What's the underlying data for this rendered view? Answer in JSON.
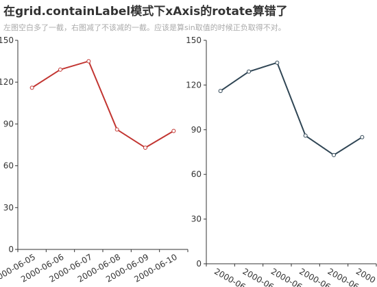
{
  "header": {
    "title": "在grid.containLabel模式下xAxis的rotate算错了",
    "subtitle": "左图空白多了一截，右图减了不该减的一截。应该是算sin取值的时候正负取得不对。"
  },
  "colors": {
    "axis": "#333333",
    "background": "#ffffff"
  },
  "chart_data": [
    {
      "type": "line",
      "x": [
        "2000-06-05",
        "2000-06-06",
        "2000-06-07",
        "2000-06-08",
        "2000-06-09",
        "2000-06-10"
      ],
      "x_tick_labels": [
        "2000-06-05",
        "2000-06-06",
        "2000-06-07",
        "2000-06-08",
        "2000-06-09",
        "2000-06-10"
      ],
      "series": [
        {
          "values": [
            116,
            129,
            135,
            86,
            73,
            85
          ],
          "color": "#c23531"
        }
      ],
      "yticks": [
        "0",
        "30",
        "60",
        "90",
        "120",
        "150"
      ],
      "ylim": [
        0,
        150
      ],
      "x_label_rotate": 30,
      "grid": false,
      "title": "",
      "xlabel": "",
      "ylabel": ""
    },
    {
      "type": "line",
      "x": [
        "2000-06-05",
        "2000-06-06",
        "2000-06-07",
        "2000-06-08",
        "2000-06-09",
        "2000-06-10"
      ],
      "x_tick_labels": [
        "2000-06",
        "2000-06",
        "2000-06",
        "2000-06",
        "2000-06",
        "2000"
      ],
      "series": [
        {
          "values": [
            116,
            129,
            135,
            86,
            73,
            85
          ],
          "color": "#2f4554"
        }
      ],
      "yticks": [
        "0",
        "30",
        "60",
        "90",
        "120",
        "150"
      ],
      "ylim": [
        0,
        150
      ],
      "x_label_rotate": -30,
      "grid": false,
      "title": "",
      "xlabel": "",
      "ylabel": ""
    }
  ]
}
